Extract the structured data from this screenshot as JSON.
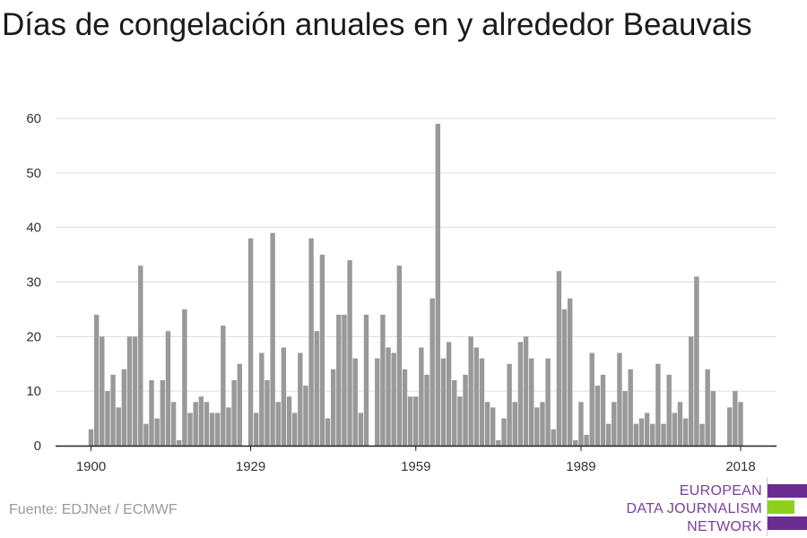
{
  "chart_data": {
    "type": "bar",
    "title": "Días de congelación anuales en y alrededor Beauvais",
    "xlabel": "",
    "ylabel": "",
    "x_tick_labels": [
      "1900",
      "1929",
      "1959",
      "1989",
      "2018"
    ],
    "y_tick_labels": [
      "0",
      "10",
      "20",
      "30",
      "40",
      "50",
      "60"
    ],
    "ylim": [
      0,
      60
    ],
    "xlim": [
      1900,
      2018
    ],
    "grid": true,
    "bar_color": "#999999",
    "categories": [
      1900,
      1901,
      1902,
      1903,
      1904,
      1905,
      1906,
      1907,
      1908,
      1909,
      1910,
      1911,
      1912,
      1913,
      1914,
      1915,
      1916,
      1917,
      1918,
      1919,
      1920,
      1921,
      1922,
      1923,
      1924,
      1925,
      1926,
      1927,
      1928,
      1929,
      1930,
      1931,
      1932,
      1933,
      1934,
      1935,
      1936,
      1937,
      1938,
      1939,
      1940,
      1941,
      1942,
      1943,
      1944,
      1945,
      1946,
      1947,
      1948,
      1949,
      1950,
      1951,
      1952,
      1953,
      1954,
      1955,
      1956,
      1957,
      1958,
      1959,
      1960,
      1961,
      1962,
      1963,
      1964,
      1965,
      1966,
      1967,
      1968,
      1969,
      1970,
      1971,
      1972,
      1973,
      1974,
      1975,
      1976,
      1977,
      1978,
      1979,
      1980,
      1981,
      1982,
      1983,
      1984,
      1985,
      1986,
      1987,
      1988,
      1989,
      1990,
      1991,
      1992,
      1993,
      1994,
      1995,
      1996,
      1997,
      1998,
      1999,
      2000,
      2001,
      2002,
      2003,
      2004,
      2005,
      2006,
      2007,
      2008,
      2009,
      2010,
      2011,
      2012,
      2013,
      2014,
      2015,
      2016,
      2017,
      2018
    ],
    "values": [
      3,
      24,
      20,
      10,
      13,
      7,
      14,
      20,
      20,
      33,
      4,
      12,
      5,
      12,
      21,
      8,
      1,
      25,
      6,
      8,
      9,
      8,
      6,
      6,
      22,
      7,
      12,
      15,
      0,
      38,
      6,
      17,
      12,
      39,
      8,
      18,
      9,
      6,
      17,
      11,
      38,
      21,
      35,
      5,
      14,
      24,
      24,
      34,
      16,
      6,
      24,
      0,
      16,
      24,
      18,
      17,
      33,
      14,
      9,
      9,
      18,
      13,
      27,
      59,
      16,
      19,
      12,
      9,
      13,
      20,
      18,
      16,
      8,
      7,
      1,
      5,
      15,
      8,
      19,
      20,
      16,
      7,
      8,
      16,
      3,
      32,
      25,
      27,
      1,
      8,
      2,
      17,
      11,
      13,
      4,
      8,
      17,
      10,
      14,
      4,
      5,
      6,
      4,
      15,
      4,
      13,
      6,
      8,
      5,
      20,
      31,
      4,
      14,
      10,
      0,
      0,
      7,
      10,
      8
    ]
  },
  "footer": {
    "source": "Fuente: EDJNet / ECMWF"
  },
  "logo": {
    "lines": [
      "EUROPEAN",
      "DATA JOURNALISM",
      "NETWORK"
    ],
    "text_color": "#7b3f98",
    "bar_colors": [
      "#6a2c91",
      "#8fd01f",
      "#6a2c91"
    ]
  }
}
